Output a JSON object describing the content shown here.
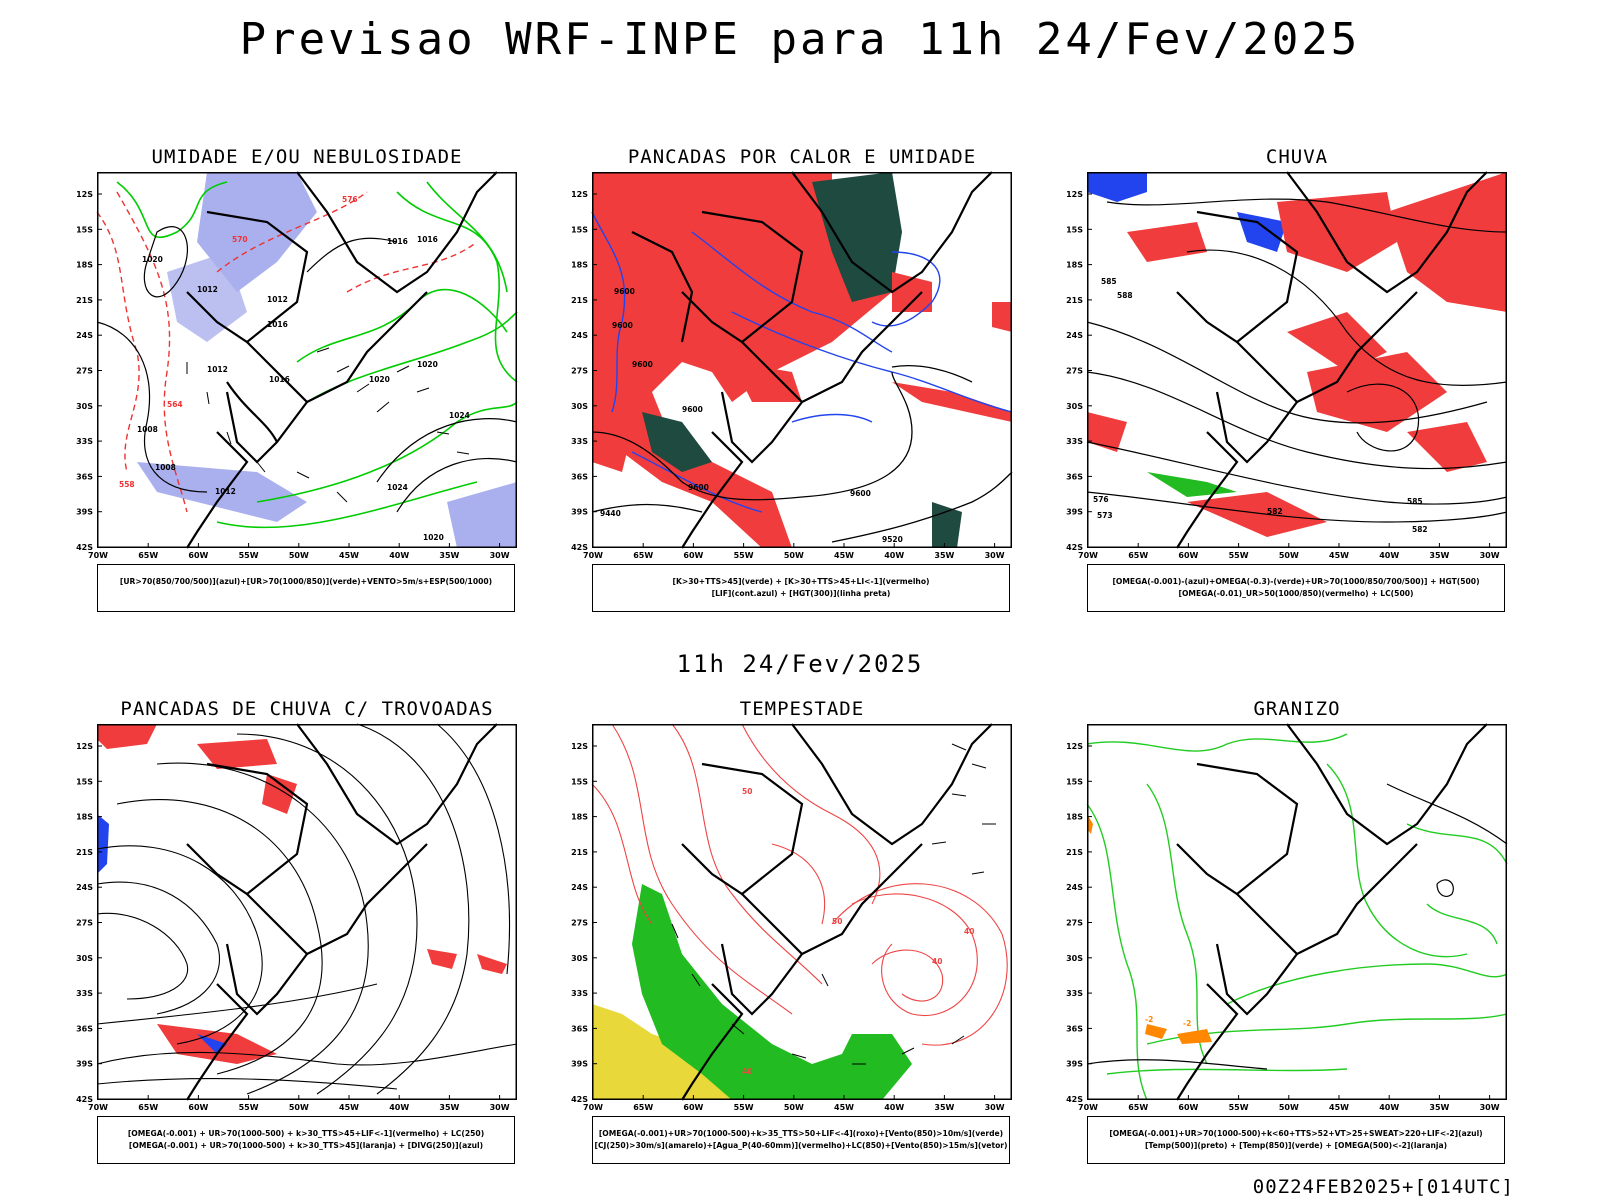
{
  "header": {
    "title": "Previsao WRF-INPE  para 11h 24/Fev/2025",
    "subtitle": "11h 24/Fev/2025",
    "footer": "00Z24FEB2025+[014UTC]"
  },
  "axes": {
    "lat_labels": [
      "12S",
      "15S",
      "18S",
      "21S",
      "24S",
      "27S",
      "30S",
      "33S",
      "36S",
      "39S",
      "42S"
    ],
    "lon_labels": [
      "70W",
      "65W",
      "60W",
      "55W",
      "50W",
      "45W",
      "40W",
      "35W",
      "30W"
    ]
  },
  "panels": [
    {
      "title": "UMIDADE E/OU NEBULOSIDADE",
      "legend": [
        "[UR>70(850/700/500)](azul)+[UR>70(1000/850)](verde)+VENTO>5m/s+ESP(500/1000)"
      ],
      "contour_labels": [
        "1016",
        "1016",
        "1020",
        "1012",
        "1012",
        "1016",
        "1012",
        "1016",
        "1020",
        "1020",
        "1024",
        "1008",
        "1008",
        "1012",
        "1024",
        "1020",
        "576",
        "570",
        "564",
        "558"
      ],
      "colors": {
        "fill": "#aab0ee",
        "line": "#00cc00",
        "dash": "#ee3333"
      }
    },
    {
      "title": "PANCADAS POR CALOR E UMIDADE",
      "legend": [
        "[K>30+TTS>45](verde) + [K>30+TTS>45+LI<-1](vermelho)",
        "[LIF](cont.azul) + [HGT(300)](linha preta)"
      ],
      "contour_labels": [
        "9600",
        "9600",
        "9600",
        "9600",
        "9600",
        "9440",
        "9600",
        "9520"
      ],
      "colors": {
        "fill": "#f03c3c",
        "dark": "#1f4a40",
        "line": "#2244ee"
      }
    },
    {
      "title": "CHUVA",
      "legend": [
        "[OMEGA(-0.001)-(azul)+OMEGA(-0.3)-(verde)+UR>70(1000/850/700/500)] + HGT(500)",
        "[OMEGA(-0.01)_UR>50(1000/850)(vermelho) + LC(500)"
      ],
      "contour_labels": [
        "585",
        "588",
        "576",
        "573",
        "582",
        "585",
        "582"
      ],
      "colors": {
        "fill": "#f03c3c",
        "blue": "#2244ee"
      }
    },
    {
      "title": "PANCADAS DE CHUVA C/ TROVOADAS",
      "legend": [
        "[OMEGA(-0.001) + UR>70(1000-500) + k>30_TTS>45+LIF<-1](vermelho) + LC(250)",
        "[OMEGA(-0.001) + UR>70(1000-500) + k>30_TTS>45](laranja) + [DIVG(250)](azul)"
      ],
      "contour_labels": [],
      "colors": {
        "fill": "#f03c3c",
        "blue": "#2244ee"
      }
    },
    {
      "title": "TEMPESTADE",
      "legend": [
        "[OMEGA(-0.001)+UR>70(1000-500)+k>35_TTS>50+LIF<-4](roxo)+[Vento(850)>10m/s](verde)",
        "[CJ(250)>30m/s](amarelo)+[Agua_P(40-60mm)](vermelho)+LC(850)+[Vento(850)>15m/s](vetor)"
      ],
      "contour_labels": [
        "40",
        "40",
        "50",
        "50",
        "40"
      ],
      "colors": {
        "green": "#22bb22",
        "yellow": "#e8d83a",
        "red": "#ee4444"
      }
    },
    {
      "title": "GRANIZO",
      "legend": [
        "[OMEGA(-0.001)+UR>70(1000-500)+k<60+TTS>52+VT>25+SWEAT>220+LIF<-2](azul)",
        "[Temp(500)](preto) + [Temp(850)](verde) + [OMEGA(500)<-2](laranja)"
      ],
      "contour_labels": [
        "-2",
        "-2"
      ],
      "colors": {
        "green": "#22cc22",
        "orange": "#ff8800"
      }
    }
  ]
}
